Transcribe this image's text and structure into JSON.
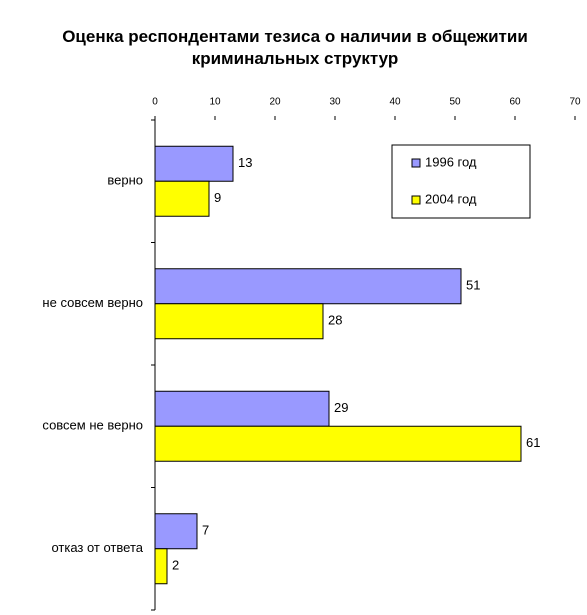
{
  "chart_data": {
    "type": "barh",
    "title": "Оценка респондентами тезиса о наличии в общежитии криминальных структур",
    "categories": [
      "верно",
      "не совсем верно",
      "совсем не верно",
      "отказ от ответа"
    ],
    "series": [
      {
        "name": "1996 год",
        "color": "#9999ff",
        "values": [
          13,
          51,
          29,
          7
        ]
      },
      {
        "name": "2004 год",
        "color": "#ffff00",
        "values": [
          9,
          28,
          61,
          2
        ]
      }
    ],
    "xlim": [
      0,
      70
    ],
    "xticks": [
      0,
      10,
      20,
      30,
      40,
      50,
      60,
      70
    ],
    "legend": "upper right",
    "grid": false
  }
}
